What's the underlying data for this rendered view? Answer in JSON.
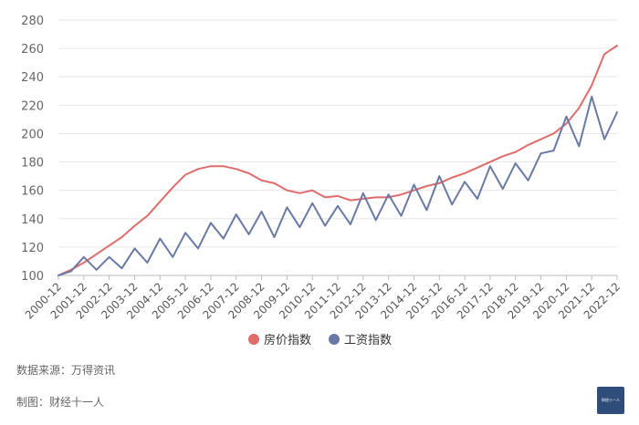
{
  "chart_data": {
    "type": "line",
    "categories": [
      "2000-12",
      "2001-12",
      "2002-12",
      "2003-12",
      "2004-12",
      "2005-12",
      "2006-12",
      "2007-12",
      "2008-12",
      "2009-12",
      "2010-12",
      "2011-12",
      "2012-12",
      "2013-12",
      "2014-12",
      "2015-12",
      "2016-12",
      "2017-12",
      "2018-12",
      "2019-12",
      "2020-12",
      "2021-12",
      "2022-12"
    ],
    "ylim": [
      100,
      280
    ],
    "yticks": [
      100,
      120,
      140,
      160,
      180,
      200,
      220,
      240,
      260,
      280
    ],
    "x": [
      0,
      0.5,
      1,
      1.5,
      2,
      2.5,
      3,
      3.5,
      4,
      4.5,
      5,
      5.5,
      6,
      6.5,
      7,
      7.5,
      8,
      8.5,
      9,
      9.5,
      10,
      10.5,
      11,
      11.5,
      12,
      12.5,
      13,
      13.5,
      14,
      14.5,
      15,
      15.5,
      16,
      16.5,
      17,
      17.5,
      18,
      18.5,
      19,
      19.5,
      20,
      20.5,
      21,
      21.5,
      22
    ],
    "series": [
      {
        "name": "房价指数",
        "color": "#e06b6b",
        "values": [
          100,
          104,
          109,
          115,
          121,
          127,
          135,
          142,
          152,
          162,
          171,
          175,
          177,
          177,
          175,
          172,
          167,
          165,
          160,
          158,
          160,
          155,
          156,
          153,
          154,
          155,
          155,
          157,
          160,
          163,
          165,
          169,
          172,
          176,
          180,
          184,
          187,
          192,
          196,
          200,
          207,
          218,
          234,
          256,
          262
        ]
      },
      {
        "name": "工资指数",
        "color": "#6a7aa5",
        "values": [
          100,
          103,
          113,
          104,
          113,
          105,
          119,
          109,
          126,
          113,
          130,
          119,
          137,
          126,
          143,
          129,
          145,
          127,
          148,
          134,
          151,
          135,
          149,
          136,
          158,
          139,
          157,
          142,
          164,
          146,
          170,
          150,
          166,
          154,
          177,
          161,
          179,
          167,
          186,
          188,
          212,
          191,
          226,
          196,
          215
        ]
      }
    ]
  },
  "footer": {
    "source": "数据来源：万得资讯",
    "credit": "制图：财经十一人",
    "logo_text": "财经十一人"
  }
}
